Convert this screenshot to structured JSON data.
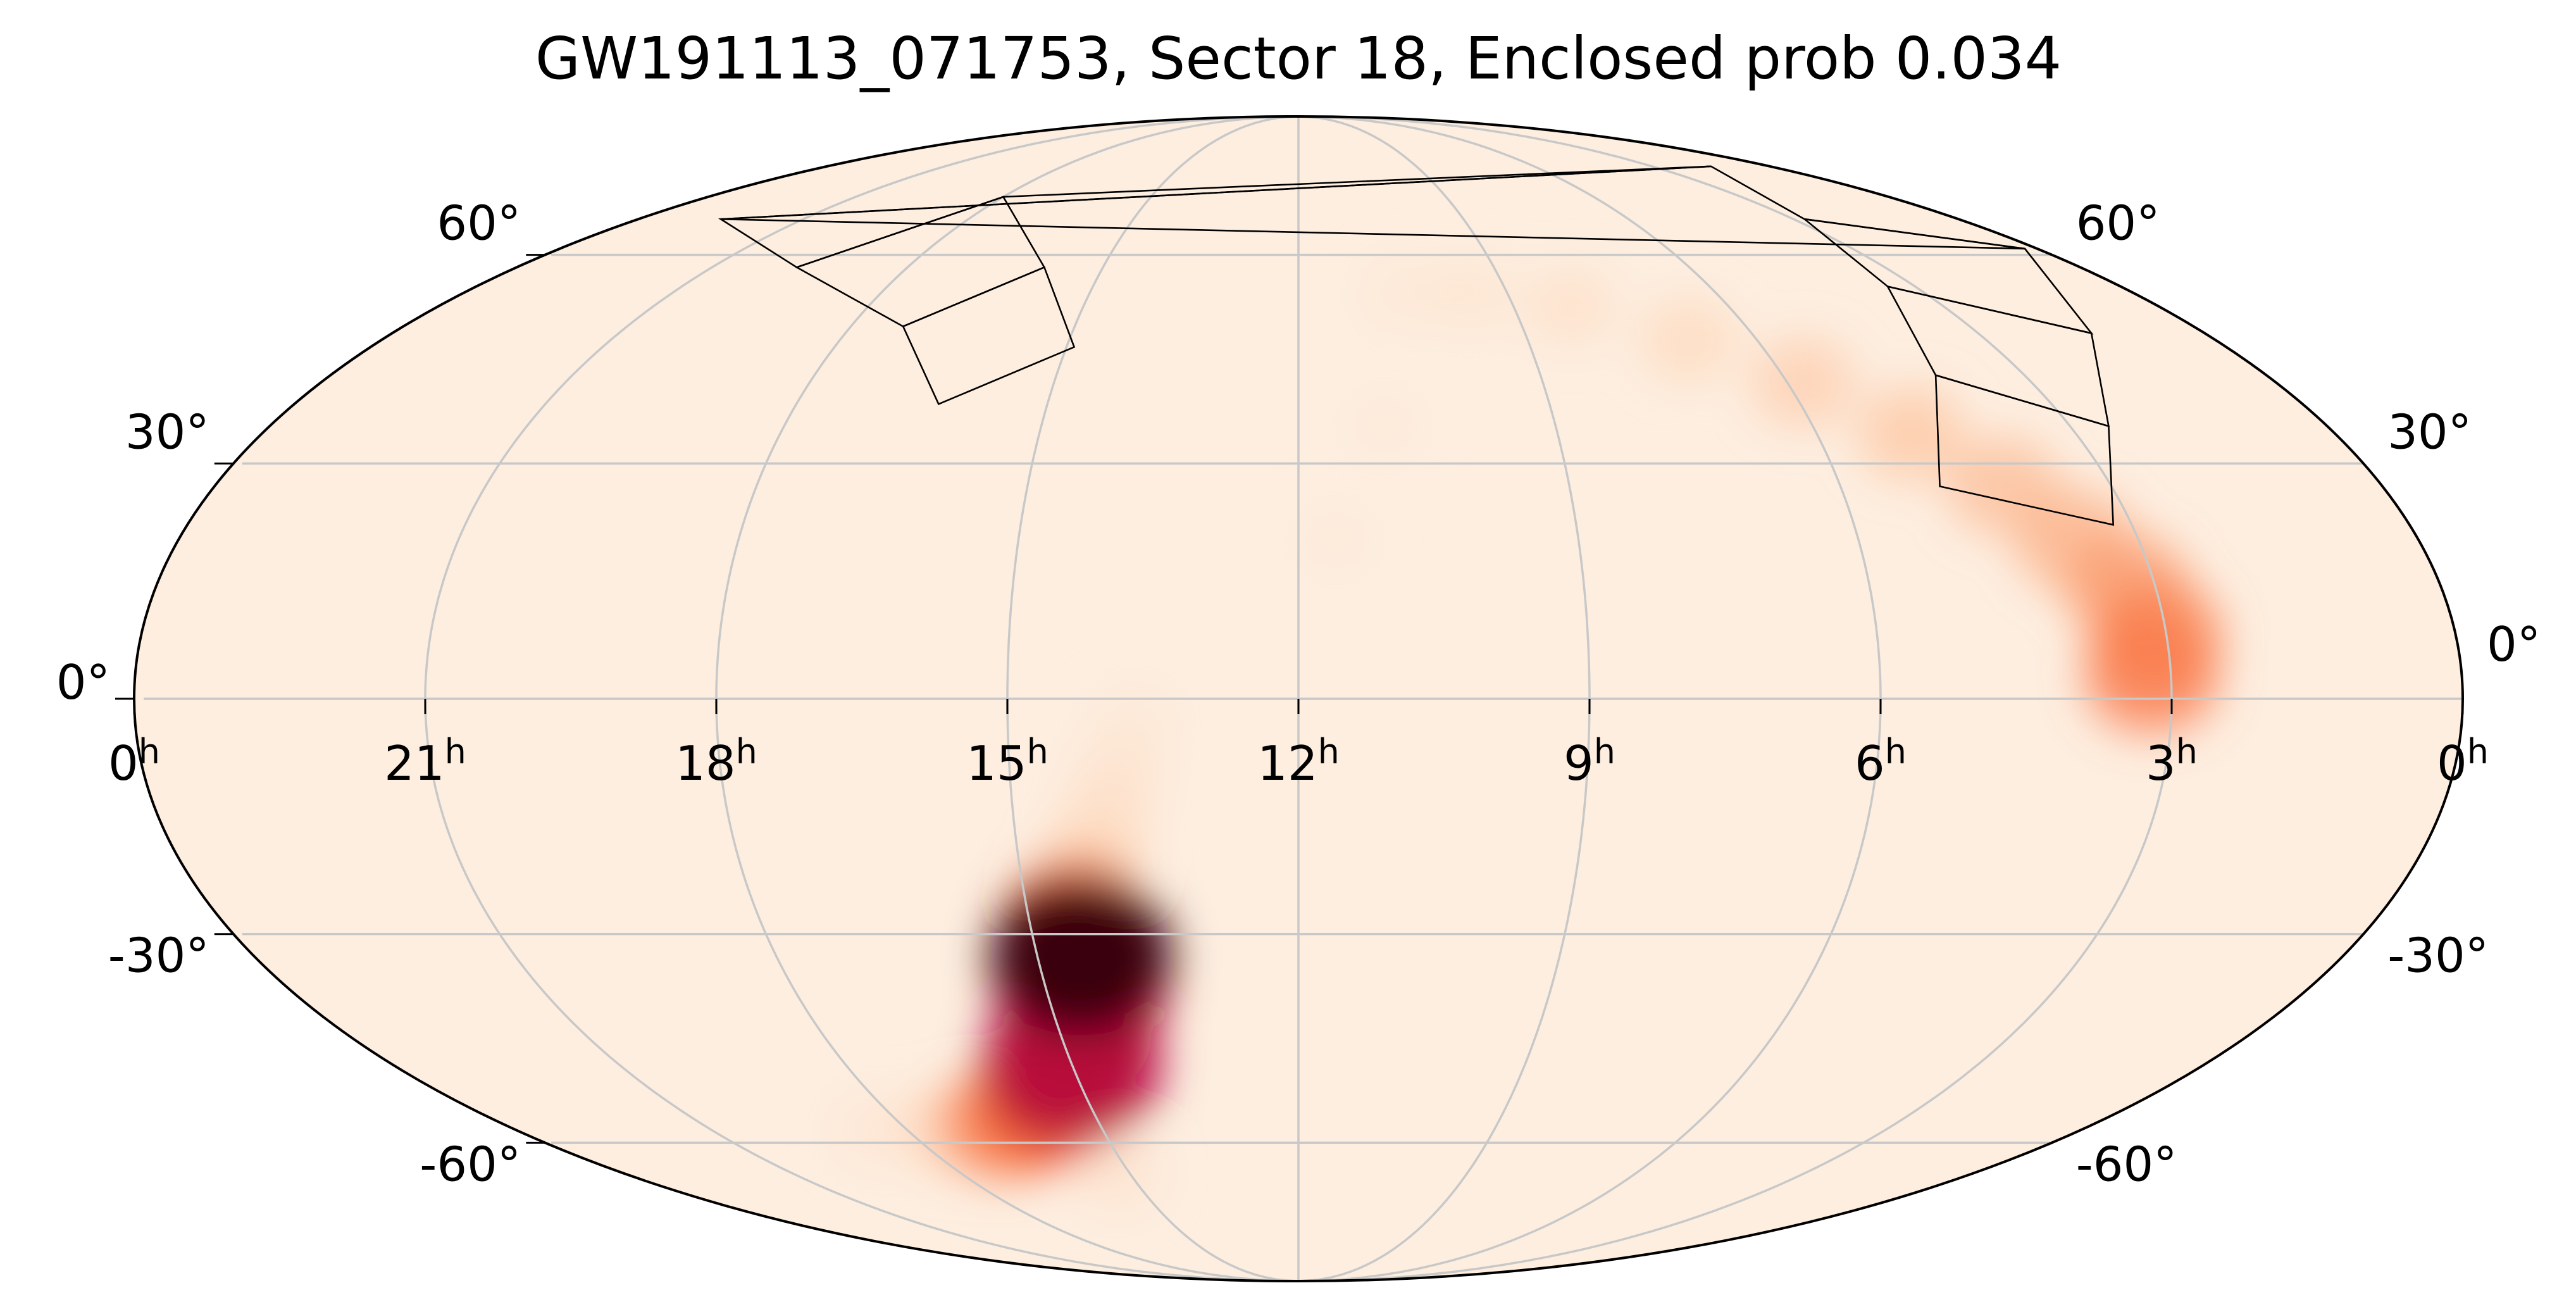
{
  "chart_data": {
    "type": "heatmap",
    "projection": "mollweide",
    "title": "GW191113_071753, Sector 18, Enclosed prob 0.034",
    "ra_ticks": [
      {
        "ra": 0,
        "label": "0",
        "unit": "h"
      },
      {
        "ra": 21,
        "label": "21",
        "unit": "h"
      },
      {
        "ra": 18,
        "label": "18",
        "unit": "h"
      },
      {
        "ra": 15,
        "label": "15",
        "unit": "h"
      },
      {
        "ra": 12,
        "label": "12",
        "unit": "h"
      },
      {
        "ra": 9,
        "label": "9",
        "unit": "h"
      },
      {
        "ra": 6,
        "label": "6",
        "unit": "h"
      },
      {
        "ra": 3,
        "label": "3",
        "unit": "h"
      },
      {
        "ra": 0,
        "label": "0",
        "unit": "h"
      }
    ],
    "dec_ticks_left": [
      {
        "dec": 60,
        "label": "60°"
      },
      {
        "dec": 30,
        "label": "30°"
      },
      {
        "dec": 0,
        "label": "0°"
      },
      {
        "dec": -30,
        "label": "-30°"
      },
      {
        "dec": -60,
        "label": "-60°"
      }
    ],
    "dec_ticks_right": [
      {
        "dec": 60,
        "label": "60°"
      },
      {
        "dec": 30,
        "label": "30°"
      },
      {
        "dec": 0,
        "label": "0°"
      },
      {
        "dec": -30,
        "label": "-30°"
      },
      {
        "dec": -60,
        "label": "-60°"
      }
    ],
    "grid": true,
    "colormap": {
      "name": "heat",
      "stops": [
        "#fdeee0",
        "#fdd3b3",
        "#fca070",
        "#f86432",
        "#e23a1e",
        "#b00040",
        "#3a0010"
      ]
    },
    "probability_density": [
      {
        "ra": 3.2,
        "dec": 3,
        "density": 0.45
      },
      {
        "ra": 3.1,
        "dec": 8,
        "density": 0.42
      },
      {
        "ra": 3.3,
        "dec": 14,
        "density": 0.36
      },
      {
        "ra": 3.7,
        "dec": 20,
        "density": 0.3
      },
      {
        "ra": 4.2,
        "dec": 27,
        "density": 0.26
      },
      {
        "ra": 4.9,
        "dec": 34,
        "density": 0.23
      },
      {
        "ra": 5.8,
        "dec": 41,
        "density": 0.2
      },
      {
        "ra": 6.9,
        "dec": 47,
        "density": 0.15
      },
      {
        "ra": 8.2,
        "dec": 52,
        "density": 0.1
      },
      {
        "ra": 9.5,
        "dec": 54,
        "density": 0.07
      },
      {
        "ra": 10.5,
        "dec": 54,
        "density": 0.05
      },
      {
        "ra": 11.0,
        "dec": 35,
        "density": 0.03
      },
      {
        "ra": 11.6,
        "dec": 20,
        "density": 0.03
      },
      {
        "ra": 13.7,
        "dec": -3,
        "density": 0.05
      },
      {
        "ra": 13.9,
        "dec": -10,
        "density": 0.09
      },
      {
        "ra": 14.1,
        "dec": -17,
        "density": 0.14
      },
      {
        "ra": 14.35,
        "dec": -24,
        "density": 0.25
      },
      {
        "ra": 14.5,
        "dec": -29,
        "density": 0.55
      },
      {
        "ra": 14.5,
        "dec": -33,
        "density": 1.0
      },
      {
        "ra": 14.6,
        "dec": -38,
        "density": 0.75
      },
      {
        "ra": 14.8,
        "dec": -44,
        "density": 0.55
      },
      {
        "ra": 15.0,
        "dec": -48,
        "density": 0.82
      },
      {
        "ra": 15.3,
        "dec": -51,
        "density": 0.6
      },
      {
        "ra": 15.8,
        "dec": -55,
        "density": 0.5
      },
      {
        "ra": 16.5,
        "dec": -57,
        "density": 0.4
      },
      {
        "ra": 17.4,
        "dec": -58,
        "density": 0.15
      },
      {
        "ra": 18.5,
        "dec": -58,
        "density": 0.06
      },
      {
        "ra": 15.2,
        "dec": -65,
        "density": 0.08
      }
    ],
    "tess_sector": 18,
    "enclosed_prob": 0.034,
    "tess_footprints": [
      {
        "corners": [
          [
            4.9,
            27
          ],
          [
            3.2,
            22
          ],
          [
            2.55,
            35
          ],
          [
            4.1,
            42
          ]
        ]
      },
      {
        "corners": [
          [
            4.1,
            42
          ],
          [
            2.55,
            35
          ],
          [
            1.5,
            48
          ],
          [
            3.4,
            55
          ]
        ]
      },
      {
        "corners": [
          [
            3.4,
            55
          ],
          [
            1.5,
            48
          ],
          [
            0.2,
            61
          ],
          [
            2.8,
            66
          ]
        ]
      },
      {
        "corners": [
          [
            2.8,
            66
          ],
          [
            0.2,
            61
          ],
          [
            22.5,
            66
          ],
          [
            1.5,
            76
          ]
        ]
      },
      {
        "corners": [
          [
            1.5,
            76
          ],
          [
            22.5,
            66
          ],
          [
            19.7,
            58
          ],
          [
            18.0,
            70
          ]
        ]
      },
      {
        "corners": [
          [
            18.0,
            70
          ],
          [
            19.7,
            58
          ],
          [
            17.3,
            49
          ],
          [
            15.9,
            58
          ]
        ]
      },
      {
        "corners": [
          [
            15.9,
            58
          ],
          [
            17.3,
            49
          ],
          [
            16.3,
            38
          ],
          [
            14.9,
            46
          ]
        ]
      }
    ]
  }
}
